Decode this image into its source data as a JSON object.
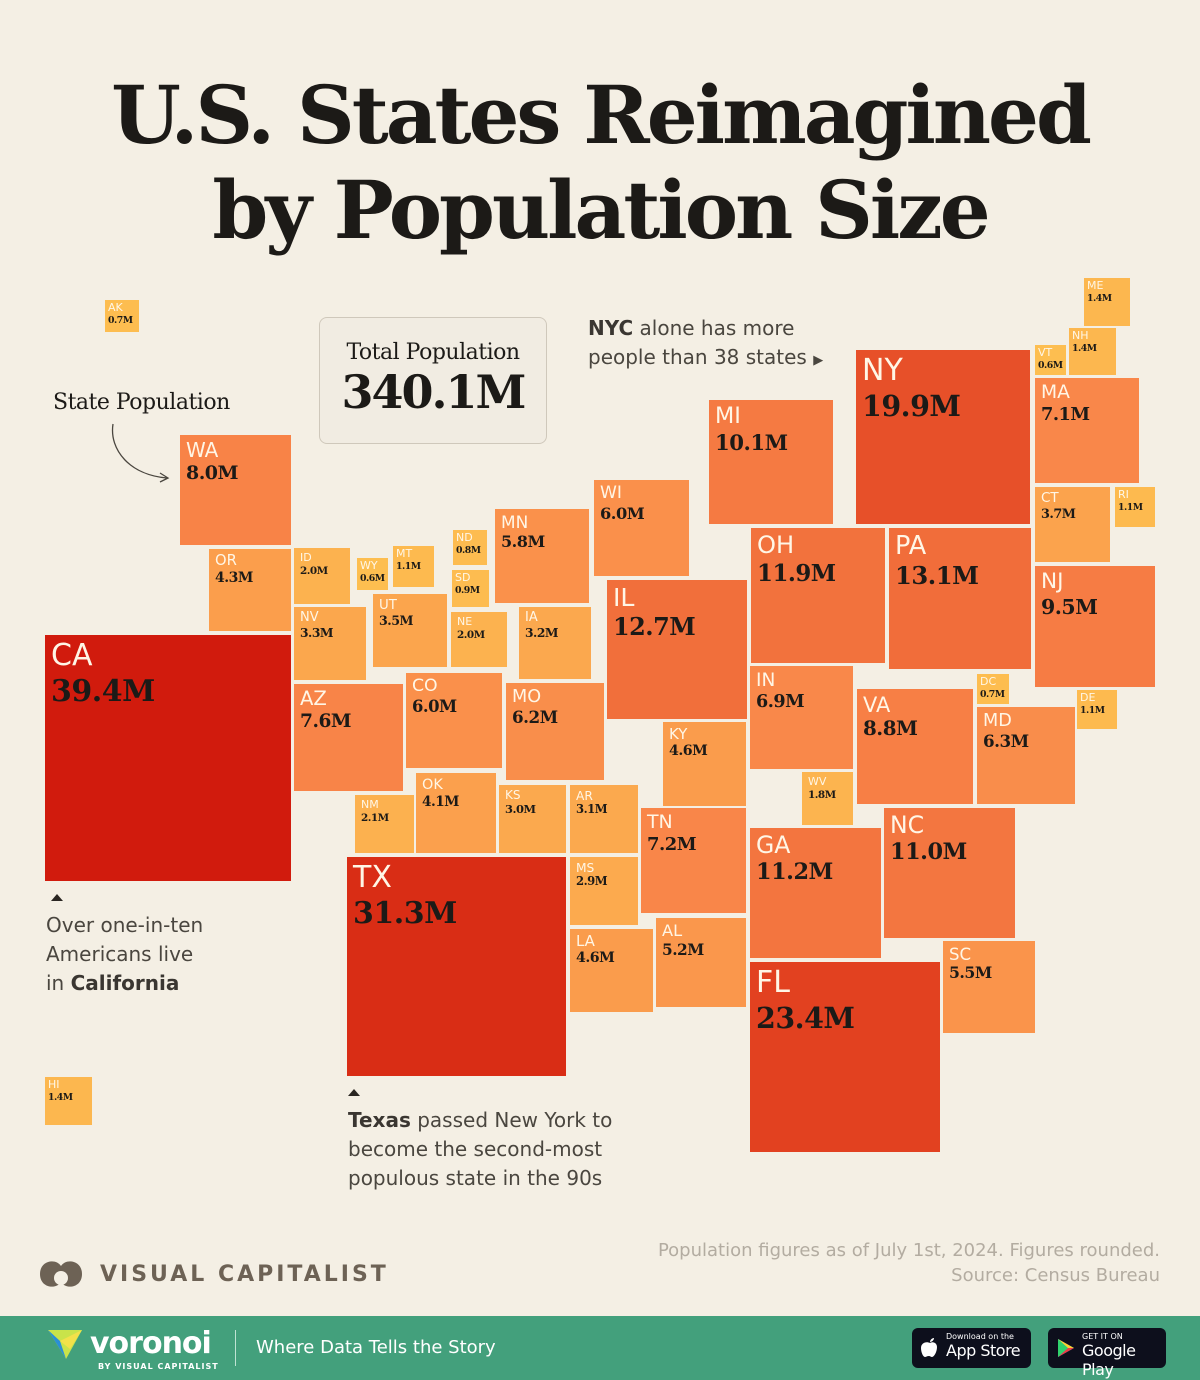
{
  "title_line1": "U.S. States Reimagined",
  "title_line2": "by Population Size",
  "legend_label": "State Population",
  "total": {
    "label": "Total Population",
    "value": "340.1M"
  },
  "notes": {
    "nyc_bold": "NYC",
    "nyc_rest1": " alone has more",
    "nyc_line2": "people than 38 states",
    "ca_line1": "Over one-in-ten",
    "ca_line2": "Americans live",
    "ca_line3_pre": "in ",
    "ca_line3_bold": "California",
    "tx_bold": "Texas",
    "tx_rest1": " passed New York to",
    "tx_line2": "become the second-most",
    "tx_line3": "populous state in the 90s"
  },
  "colors": {
    "low": "#fdbf50",
    "mid": "#f9874a",
    "high": "#e03a1c",
    "max": "#d01a0c",
    "background": "#f4efe4",
    "footer": "#43a07c"
  },
  "states": [
    {
      "abbr": "AK",
      "pop": "0.7M",
      "value": 0.7
    },
    {
      "abbr": "WA",
      "pop": "8.0M",
      "value": 8.0
    },
    {
      "abbr": "OR",
      "pop": "4.3M",
      "value": 4.3
    },
    {
      "abbr": "CA",
      "pop": "39.4M",
      "value": 39.4
    },
    {
      "abbr": "ID",
      "pop": "2.0M",
      "value": 2.0
    },
    {
      "abbr": "WY",
      "pop": "0.6M",
      "value": 0.6
    },
    {
      "abbr": "MT",
      "pop": "1.1M",
      "value": 1.1
    },
    {
      "abbr": "NV",
      "pop": "3.3M",
      "value": 3.3
    },
    {
      "abbr": "UT",
      "pop": "3.5M",
      "value": 3.5
    },
    {
      "abbr": "ND",
      "pop": "0.8M",
      "value": 0.8
    },
    {
      "abbr": "SD",
      "pop": "0.9M",
      "value": 0.9
    },
    {
      "abbr": "MN",
      "pop": "5.8M",
      "value": 5.8
    },
    {
      "abbr": "NE",
      "pop": "2.0M",
      "value": 2.0
    },
    {
      "abbr": "IA",
      "pop": "3.2M",
      "value": 3.2
    },
    {
      "abbr": "WI",
      "pop": "6.0M",
      "value": 6.0
    },
    {
      "abbr": "MI",
      "pop": "10.1M",
      "value": 10.1
    },
    {
      "abbr": "NY",
      "pop": "19.9M",
      "value": 19.9
    },
    {
      "abbr": "VT",
      "pop": "0.6M",
      "value": 0.6
    },
    {
      "abbr": "NH",
      "pop": "1.4M",
      "value": 1.4
    },
    {
      "abbr": "ME",
      "pop": "1.4M",
      "value": 1.4
    },
    {
      "abbr": "MA",
      "pop": "7.1M",
      "value": 7.1
    },
    {
      "abbr": "CT",
      "pop": "3.7M",
      "value": 3.7
    },
    {
      "abbr": "RI",
      "pop": "1.1M",
      "value": 1.1
    },
    {
      "abbr": "NJ",
      "pop": "9.5M",
      "value": 9.5
    },
    {
      "abbr": "PA",
      "pop": "13.1M",
      "value": 13.1
    },
    {
      "abbr": "OH",
      "pop": "11.9M",
      "value": 11.9
    },
    {
      "abbr": "IL",
      "pop": "12.7M",
      "value": 12.7
    },
    {
      "abbr": "IN",
      "pop": "6.9M",
      "value": 6.9
    },
    {
      "abbr": "AZ",
      "pop": "7.6M",
      "value": 7.6
    },
    {
      "abbr": "CO",
      "pop": "6.0M",
      "value": 6.0
    },
    {
      "abbr": "MO",
      "pop": "6.2M",
      "value": 6.2
    },
    {
      "abbr": "KY",
      "pop": "4.6M",
      "value": 4.6
    },
    {
      "abbr": "VA",
      "pop": "8.8M",
      "value": 8.8
    },
    {
      "abbr": "DC",
      "pop": "0.7M",
      "value": 0.7
    },
    {
      "abbr": "DE",
      "pop": "1.1M",
      "value": 1.1
    },
    {
      "abbr": "MD",
      "pop": "6.3M",
      "value": 6.3
    },
    {
      "abbr": "WV",
      "pop": "1.8M",
      "value": 1.8
    },
    {
      "abbr": "NM",
      "pop": "2.1M",
      "value": 2.1
    },
    {
      "abbr": "OK",
      "pop": "4.1M",
      "value": 4.1
    },
    {
      "abbr": "KS",
      "pop": "3.0M",
      "value": 3.0
    },
    {
      "abbr": "AR",
      "pop": "3.1M",
      "value": 3.1
    },
    {
      "abbr": "TN",
      "pop": "7.2M",
      "value": 7.2
    },
    {
      "abbr": "NC",
      "pop": "11.0M",
      "value": 11.0
    },
    {
      "abbr": "GA",
      "pop": "11.2M",
      "value": 11.2
    },
    {
      "abbr": "SC",
      "pop": "5.5M",
      "value": 5.5
    },
    {
      "abbr": "MS",
      "pop": "2.9M",
      "value": 2.9
    },
    {
      "abbr": "AL",
      "pop": "5.2M",
      "value": 5.2
    },
    {
      "abbr": "LA",
      "pop": "4.6M",
      "value": 4.6
    },
    {
      "abbr": "TX",
      "pop": "31.3M",
      "value": 31.3
    },
    {
      "abbr": "FL",
      "pop": "23.4M",
      "value": 23.4
    },
    {
      "abbr": "HI",
      "pop": "1.4M",
      "value": 1.4
    }
  ],
  "footer": {
    "source_line1": "Population figures as of July 1st, 2024. Figures rounded.",
    "source_line2": "Source: Census Bureau",
    "vc_brand": "VISUAL CAPITALIST",
    "voronoi": "voronoi",
    "voronoi_sub": "BY VISUAL CAPITALIST",
    "tagline": "Where Data Tells the Story",
    "appstore_small": "Download on the",
    "appstore_large": "App Store",
    "gplay_small": "GET IT ON",
    "gplay_large": "Google Play"
  }
}
